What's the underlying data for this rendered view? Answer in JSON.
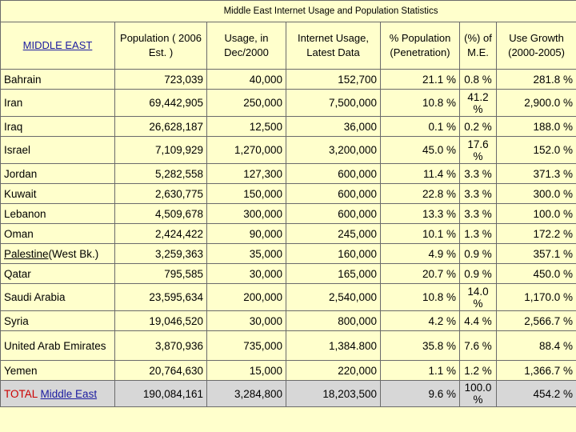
{
  "title": "Middle East Internet Usage and Population Statistics",
  "headers": {
    "region": "MIDDLE EAST",
    "population": "Population ( 2006 Est. )",
    "usage_2000": "Usage, in Dec/2000",
    "usage_latest": "Internet Usage, Latest Data",
    "penetration": "% Population (Penetration)",
    "pct_me": "(%) of M.E.",
    "growth": "Use Growth (2000-2005)"
  },
  "rows": [
    {
      "country": "Bahrain",
      "population": "723,039",
      "usage_2000": "40,000",
      "usage_latest": "152,700",
      "penetration": "21.1 %",
      "pct_me": "0.8 %",
      "growth": "281.8 %"
    },
    {
      "country": "Iran",
      "population": "69,442,905",
      "usage_2000": "250,000",
      "usage_latest": "7,500,000",
      "penetration": "10.8 %",
      "pct_me": "41.2 %",
      "growth": "2,900.0 %"
    },
    {
      "country": "Iraq",
      "population": "26,628,187",
      "usage_2000": "12,500",
      "usage_latest": "36,000",
      "penetration": "0.1 %",
      "pct_me": "0.2 %",
      "growth": "188.0 %"
    },
    {
      "country": "Israel",
      "population": "7,109,929",
      "usage_2000": "1,270,000",
      "usage_latest": "3,200,000",
      "penetration": "45.0 %",
      "pct_me": "17.6 %",
      "growth": "152.0 %"
    },
    {
      "country": "Jordan",
      "population": "5,282,558",
      "usage_2000": "127,300",
      "usage_latest": "600,000",
      "penetration": "11.4 %",
      "pct_me": "3.3 %",
      "growth": "371.3 %"
    },
    {
      "country": "Kuwait",
      "population": "2,630,775",
      "usage_2000": "150,000",
      "usage_latest": "600,000",
      "penetration": "22.8 %",
      "pct_me": "3.3 %",
      "growth": "300.0 %"
    },
    {
      "country": "Lebanon",
      "population": "4,509,678",
      "usage_2000": "300,000",
      "usage_latest": "600,000",
      "penetration": "13.3 %",
      "pct_me": "3.3 %",
      "growth": "100.0 %"
    },
    {
      "country": "Oman",
      "population": "2,424,422",
      "usage_2000": "90,000",
      "usage_latest": "245,000",
      "penetration": "10.1 %",
      "pct_me": "1.3 %",
      "growth": "172.2 %"
    },
    {
      "country_link": "Palestine",
      "country_suffix": "(West Bk.)",
      "population": "3,259,363",
      "usage_2000": "35,000",
      "usage_latest": "160,000",
      "penetration": "4.9 %",
      "pct_me": "0.9 %",
      "growth": "357.1 %"
    },
    {
      "country": "Qatar",
      "population": "795,585",
      "usage_2000": "30,000",
      "usage_latest": "165,000",
      "penetration": "20.7 %",
      "pct_me": "0.9 %",
      "growth": "450.0 %"
    },
    {
      "country": "Saudi Arabia",
      "population": "23,595,634",
      "usage_2000": "200,000",
      "usage_latest": "2,540,000",
      "penetration": "10.8 %",
      "pct_me": "14.0 %",
      "growth": "1,170.0 %"
    },
    {
      "country": "Syria",
      "population": "19,046,520",
      "usage_2000": "30,000",
      "usage_latest": "800,000",
      "penetration": "4.2 %",
      "pct_me": "4.4 %",
      "growth": "2,566.7 %"
    },
    {
      "country": "United Arab Emirates",
      "population": "3,870,936",
      "usage_2000": "735,000",
      "usage_latest": "1,384.800",
      "penetration": "35.8 %",
      "pct_me": "7.6 %",
      "growth": "88.4 %"
    },
    {
      "country": "Yemen",
      "population": "20,764,630",
      "usage_2000": "15,000",
      "usage_latest": "220,000",
      "penetration": "1.1 %",
      "pct_me": "1.2 %",
      "growth": "1,366.7 %"
    }
  ],
  "total": {
    "label_prefix": "TOTAL",
    "label_link": "Middle East",
    "population": "190,084,161",
    "usage_2000": "3,284,800",
    "usage_latest": "18,203,500",
    "penetration": "9.6 %",
    "pct_me": "100.0 %",
    "growth": "454.2 %"
  },
  "colors": {
    "background": "#ffffcc",
    "total_row": "#d7d7d7",
    "link": "#1a1aa0",
    "total_label": "#cc0000",
    "border": "#6b6b6b"
  }
}
